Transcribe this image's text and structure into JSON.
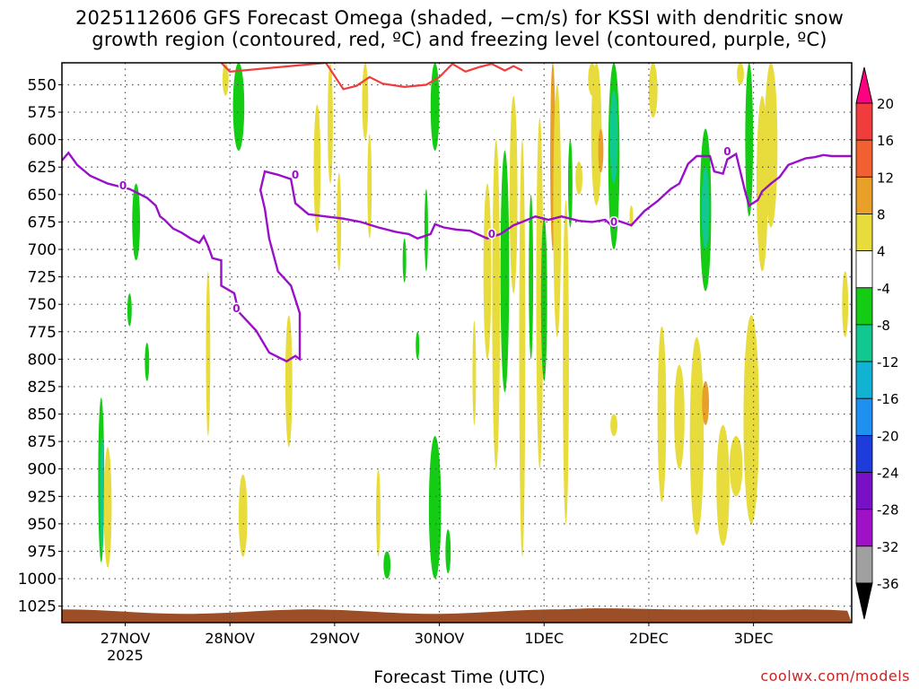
{
  "title_line1": "2025112606 GFS Forecast Omega (shaded, −cm/s) for KSSI with dendritic snow",
  "title_line2": "growth region (contoured, red, ºC) and freezing level (contoured, purple, ºC)",
  "xlabel": "Forecast Time (UTC)",
  "credit": "coolwx.com/models",
  "colors": {
    "freezing_level": "#9a10c8",
    "dendritic": "#f03c3c",
    "terrain": "#9c4e26",
    "green": "#14cc14",
    "teal": "#10c890",
    "yellow": "#e8dc3c",
    "orange": "#e8a028",
    "gridline": "#555555"
  },
  "chart_data": {
    "type": "heatmap",
    "title": "2025112606 GFS Forecast Omega (shaded, −cm/s) for KSSI with dendritic snow growth region (contoured, red, ºC) and freezing level (contoured, purple, ºC)",
    "xlabel": "Forecast Time (UTC)",
    "ylabel": "",
    "x_ticks": [
      "27NOV",
      "28NOV",
      "29NOV",
      "30NOV",
      "1DEC",
      "2DEC",
      "3DEC"
    ],
    "x_tick_sublabel": "2025",
    "x_range_hours": [
      -14.5,
      166.5
    ],
    "y_ticks": [
      550,
      575,
      600,
      625,
      650,
      675,
      700,
      725,
      750,
      775,
      800,
      825,
      850,
      875,
      900,
      925,
      950,
      975,
      1000,
      1025
    ],
    "y_range_hPa": [
      530,
      1040
    ],
    "grid": true,
    "colorbar": {
      "labels": [
        "20",
        "16",
        "12",
        "8",
        "4",
        "-4",
        "-8",
        "-12",
        "-16",
        "-20",
        "-24",
        "-28",
        "-32",
        "-36"
      ],
      "colors": [
        "#ff0080",
        "#f03c3c",
        "#f06030",
        "#e8a028",
        "#e8dc3c",
        "#ffffff",
        "#14cc14",
        "#10c890",
        "#10b4d2",
        "#1e90f0",
        "#1e3cdc",
        "#7810c8",
        "#a010c8",
        "#a0a0a0",
        "#000000"
      ]
    },
    "freezing_level_0C": {
      "label": "0",
      "points": [
        [
          -14.5,
          619
        ],
        [
          -13,
          612
        ],
        [
          -11,
          623
        ],
        [
          -8,
          633
        ],
        [
          -4,
          640
        ],
        [
          1,
          645
        ],
        [
          3,
          649
        ],
        [
          5,
          653
        ],
        [
          7,
          660
        ],
        [
          8,
          670
        ],
        [
          9,
          673
        ],
        [
          11,
          681
        ],
        [
          13,
          685
        ],
        [
          15,
          690
        ],
        [
          17,
          694
        ],
        [
          18,
          688
        ],
        [
          19,
          697
        ],
        [
          20,
          708
        ],
        [
          22,
          710
        ],
        [
          22,
          733
        ],
        [
          25,
          740
        ],
        [
          26,
          757
        ],
        [
          30,
          774
        ],
        [
          33,
          794
        ],
        [
          37,
          802
        ],
        [
          39,
          797
        ],
        [
          40,
          800
        ],
        [
          40,
          758
        ],
        [
          38,
          733
        ],
        [
          35,
          720
        ],
        [
          33,
          690
        ],
        [
          32,
          663
        ],
        [
          31,
          646
        ],
        [
          32,
          629
        ],
        [
          35,
          632
        ],
        [
          38,
          636
        ],
        [
          39,
          658
        ],
        [
          42,
          668
        ],
        [
          46,
          670
        ],
        [
          50,
          672
        ],
        [
          54,
          675
        ],
        [
          58,
          680
        ],
        [
          62,
          684
        ],
        [
          65,
          686
        ],
        [
          67,
          690
        ],
        [
          70,
          686
        ],
        [
          71,
          677
        ],
        [
          73,
          680
        ],
        [
          76,
          682
        ],
        [
          79,
          683
        ],
        [
          83,
          690
        ],
        [
          86,
          686
        ],
        [
          89,
          678
        ],
        [
          91,
          675
        ],
        [
          94,
          670
        ],
        [
          97,
          673
        ],
        [
          100,
          670
        ],
        [
          104,
          674
        ],
        [
          107,
          675
        ],
        [
          110,
          673
        ],
        [
          112,
          680
        ],
        [
          113,
          674
        ],
        [
          116,
          678
        ],
        [
          119,
          665
        ],
        [
          122,
          656
        ],
        [
          125,
          645
        ],
        [
          127,
          640
        ],
        [
          129,
          622
        ],
        [
          131,
          615
        ],
        [
          134,
          615
        ],
        [
          135,
          629
        ],
        [
          137,
          631
        ],
        [
          138,
          618
        ],
        [
          140,
          613
        ],
        [
          142,
          646
        ],
        [
          143,
          660
        ],
        [
          145,
          655
        ],
        [
          146,
          647
        ],
        [
          148,
          640
        ],
        [
          150,
          634
        ],
        [
          152,
          623
        ],
        [
          154,
          620
        ],
        [
          156,
          617
        ],
        [
          158,
          616
        ],
        [
          160,
          614
        ],
        [
          162,
          615
        ],
        [
          166.5,
          615
        ]
      ]
    },
    "dendritic_zone_-12C": {
      "points": [
        [
          22,
          530
        ],
        [
          24,
          538
        ],
        [
          46,
          530
        ],
        [
          50,
          554
        ],
        [
          53,
          551
        ],
        [
          56,
          543
        ],
        [
          59,
          549
        ],
        [
          64,
          552
        ],
        [
          69,
          550
        ],
        [
          72,
          543
        ],
        [
          75,
          531
        ],
        [
          78,
          538
        ],
        [
          81,
          534
        ],
        [
          84,
          531
        ],
        [
          87,
          537
        ],
        [
          89,
          533
        ],
        [
          91,
          537
        ]
      ]
    }
  }
}
